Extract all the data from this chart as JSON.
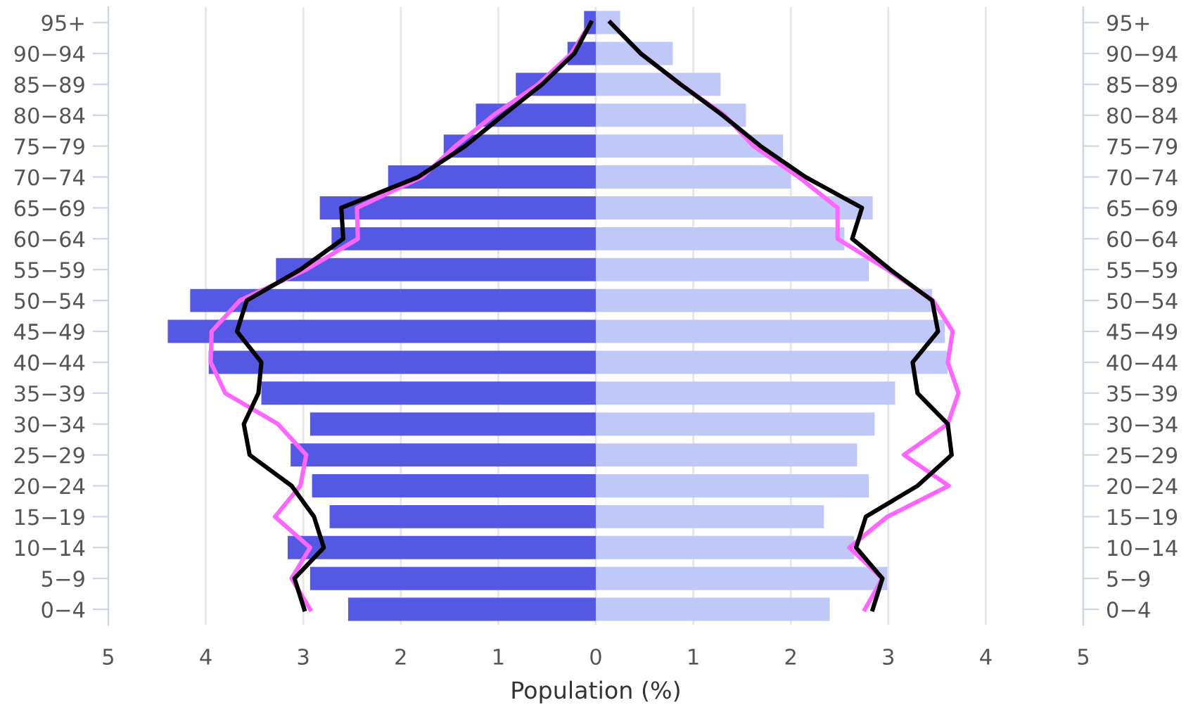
{
  "chart_data": {
    "type": "bar",
    "orientation": "horizontal",
    "xlabel": "Population (%)",
    "categories": [
      "95+",
      "90−94",
      "85−89",
      "80−84",
      "75−79",
      "70−74",
      "65−69",
      "60−64",
      "55−59",
      "50−54",
      "45−49",
      "40−44",
      "35−39",
      "30−34",
      "25−29",
      "20−24",
      "15−19",
      "10−14",
      "5−9",
      "0−4"
    ],
    "series": [
      {
        "color": "#5558e3",
        "values": [
          -0.12,
          -0.29,
          -0.82,
          -1.23,
          -1.56,
          -2.13,
          -2.83,
          -2.71,
          -3.28,
          -4.16,
          -4.39,
          -3.97,
          -3.43,
          -2.93,
          -3.13,
          -2.91,
          -2.73,
          -3.16,
          -2.93,
          -2.54
        ]
      },
      {
        "color": "#c0c8f8",
        "values": [
          0.25,
          0.79,
          1.28,
          1.54,
          1.92,
          2.0,
          2.84,
          2.55,
          2.8,
          3.45,
          3.58,
          3.61,
          3.07,
          2.86,
          2.68,
          2.8,
          2.34,
          2.65,
          2.99,
          2.4
        ]
      },
      {
        "type": "line",
        "color": "#ff66ff",
        "values": [
          -0.05,
          -0.25,
          -0.59,
          -1.05,
          -1.44,
          -1.78,
          -2.45,
          -2.44,
          -2.97,
          -3.65,
          -3.94,
          -3.95,
          -3.8,
          -3.26,
          -2.97,
          -3.03,
          -3.29,
          -2.93,
          -3.12,
          -2.93
        ]
      },
      {
        "type": "line",
        "color": "#000000",
        "values": [
          -0.05,
          -0.22,
          -0.55,
          -0.95,
          -1.34,
          -1.82,
          -2.61,
          -2.59,
          -3.03,
          -3.58,
          -3.68,
          -3.43,
          -3.46,
          -3.61,
          -3.55,
          -3.12,
          -2.89,
          -2.79,
          -3.09,
          -2.99
        ]
      },
      {
        "type": "line",
        "color": "#ff66ff",
        "values": [
          0.15,
          0.46,
          0.87,
          1.32,
          1.62,
          2.08,
          2.48,
          2.48,
          2.99,
          3.46,
          3.66,
          3.61,
          3.72,
          3.61,
          3.16,
          3.62,
          2.99,
          2.6,
          2.94,
          2.76
        ]
      },
      {
        "type": "line",
        "color": "#000000",
        "values": [
          0.15,
          0.46,
          0.87,
          1.3,
          1.69,
          2.15,
          2.73,
          2.63,
          3.02,
          3.45,
          3.51,
          3.25,
          3.3,
          3.61,
          3.65,
          3.3,
          2.77,
          2.67,
          2.94,
          2.84
        ]
      }
    ],
    "xlim": [
      -5,
      5
    ],
    "xticks": [
      {
        "value": -5,
        "label": "5"
      },
      {
        "value": -4,
        "label": "4"
      },
      {
        "value": -3,
        "label": "3"
      },
      {
        "value": -2,
        "label": "2"
      },
      {
        "value": -1,
        "label": "1"
      },
      0,
      1,
      2,
      3,
      4,
      5
    ],
    "grid": "x",
    "legend": false,
    "stacked": true
  }
}
